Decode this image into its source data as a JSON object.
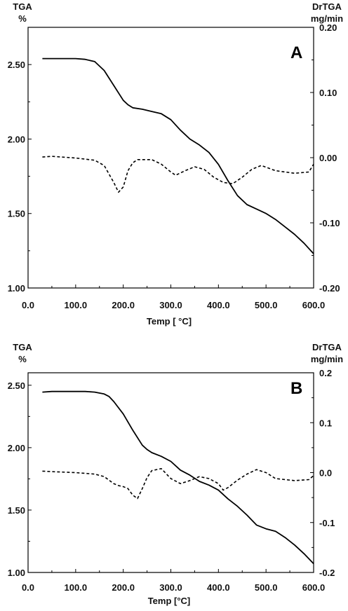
{
  "chart_data": [
    {
      "type": "line",
      "panel_label": "A",
      "left_axis_title": [
        "TGA",
        "%"
      ],
      "right_axis_title": [
        "DrTGA",
        "mg/min"
      ],
      "xlabel": "Temp [ °C]",
      "xlim": [
        0,
        600
      ],
      "ylim_left": [
        1.0,
        2.75
      ],
      "ylim_right": [
        -0.2,
        0.2
      ],
      "x_ticks": [
        "0.0",
        "100.0",
        "200.0",
        "300.0",
        "400.0",
        "500.0",
        "600.0"
      ],
      "y_left_ticks": [
        "1.00",
        "1.50",
        "2.00",
        "2.50"
      ],
      "y_right_ticks": [
        "-0.20",
        "-0.10",
        "0.00",
        "0.10",
        "0.20"
      ],
      "series": [
        {
          "axis": "left",
          "style": "solid",
          "x": [
            30,
            60,
            100,
            120,
            140,
            160,
            180,
            200,
            210,
            220,
            240,
            260,
            280,
            300,
            320,
            340,
            360,
            380,
            400,
            420,
            440,
            460,
            480,
            500,
            520,
            540,
            560,
            580,
            600
          ],
          "y": [
            2.54,
            2.54,
            2.54,
            2.535,
            2.52,
            2.46,
            2.36,
            2.26,
            2.23,
            2.21,
            2.2,
            2.185,
            2.17,
            2.13,
            2.06,
            2.0,
            1.96,
            1.91,
            1.83,
            1.72,
            1.62,
            1.56,
            1.53,
            1.5,
            1.46,
            1.41,
            1.36,
            1.3,
            1.23
          ]
        },
        {
          "axis": "right",
          "style": "dashed",
          "x": [
            30,
            50,
            100,
            140,
            160,
            180,
            190,
            200,
            210,
            220,
            230,
            260,
            280,
            300,
            310,
            330,
            350,
            370,
            390,
            410,
            430,
            450,
            470,
            490,
            520,
            560,
            590,
            600
          ],
          "y": [
            0.001,
            0.002,
            -0.0005,
            -0.004,
            -0.012,
            -0.038,
            -0.053,
            -0.045,
            -0.02,
            -0.008,
            -0.003,
            -0.003,
            -0.01,
            -0.022,
            -0.027,
            -0.02,
            -0.014,
            -0.018,
            -0.03,
            -0.038,
            -0.04,
            -0.03,
            -0.018,
            -0.012,
            -0.02,
            -0.024,
            -0.022,
            -0.01
          ]
        }
      ]
    },
    {
      "type": "line",
      "panel_label": "B",
      "left_axis_title": [
        "TGA",
        "%"
      ],
      "right_axis_title": [
        "DrTGA",
        "mg/min"
      ],
      "xlabel": "Temp [°C]",
      "xlim": [
        0,
        600
      ],
      "ylim_left": [
        1.0,
        2.6
      ],
      "ylim_right": [
        -0.2,
        0.2
      ],
      "x_ticks": [
        "0.0",
        "100.0",
        "200.0",
        "300.0",
        "400.0",
        "500.0",
        "600.0"
      ],
      "y_left_ticks": [
        "1.00",
        "1.50",
        "2.00",
        "2.50"
      ],
      "y_right_ticks": [
        "-0.2",
        "-0.1",
        "0.0",
        "0.1",
        "0.2"
      ],
      "series": [
        {
          "axis": "left",
          "style": "solid",
          "x": [
            30,
            50,
            100,
            120,
            140,
            160,
            170,
            180,
            200,
            220,
            240,
            250,
            260,
            280,
            300,
            320,
            340,
            360,
            380,
            400,
            420,
            440,
            460,
            480,
            500,
            520,
            540,
            560,
            580,
            600
          ],
          "y": [
            2.445,
            2.45,
            2.45,
            2.45,
            2.445,
            2.43,
            2.41,
            2.37,
            2.27,
            2.14,
            2.02,
            1.985,
            1.96,
            1.93,
            1.89,
            1.82,
            1.78,
            1.73,
            1.7,
            1.66,
            1.59,
            1.53,
            1.46,
            1.38,
            1.35,
            1.33,
            1.28,
            1.22,
            1.15,
            1.07
          ]
        },
        {
          "axis": "right",
          "style": "dashed",
          "x": [
            30,
            50,
            100,
            140,
            160,
            170,
            180,
            190,
            200,
            210,
            220,
            230,
            240,
            250,
            260,
            280,
            300,
            320,
            340,
            360,
            380,
            400,
            410,
            420,
            440,
            460,
            480,
            500,
            520,
            560,
            590,
            600
          ],
          "y": [
            0.003,
            0.002,
            0.0,
            -0.003,
            -0.008,
            -0.015,
            -0.022,
            -0.026,
            -0.028,
            -0.032,
            -0.045,
            -0.052,
            -0.032,
            -0.01,
            0.004,
            0.008,
            -0.012,
            -0.022,
            -0.016,
            -0.008,
            -0.012,
            -0.022,
            -0.035,
            -0.03,
            -0.015,
            -0.003,
            0.006,
            0.0,
            -0.012,
            -0.016,
            -0.014,
            -0.006
          ]
        }
      ]
    }
  ]
}
